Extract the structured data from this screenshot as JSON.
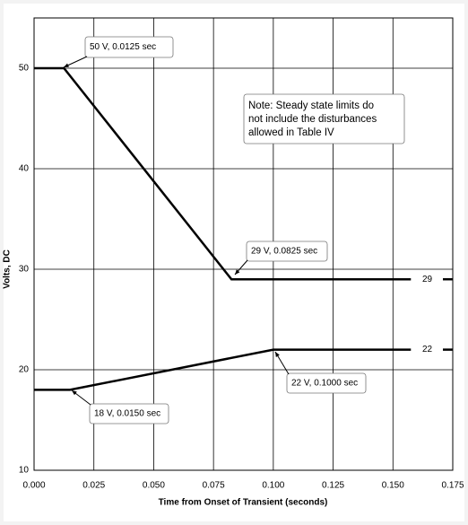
{
  "chart_data": {
    "type": "line",
    "x_label": "Time from Onset of Transient (seconds)",
    "y_label": "Volts, DC",
    "series": [
      {
        "color": "#000000",
        "x": [
          0,
          0.0125,
          0.0825,
          0.1575
        ],
        "values": [
          50,
          50,
          29,
          29
        ]
      },
      {
        "color": "#000000",
        "x": [
          0,
          0.015,
          0.1,
          0.1575
        ],
        "values": [
          18,
          18,
          22,
          22
        ]
      }
    ],
    "xlim": [
      0,
      0.175
    ],
    "xticks": [
      {
        "value": 0,
        "label": "0.000"
      },
      {
        "value": 0.025,
        "label": "0.025"
      },
      {
        "value": 0.05,
        "label": "0.050"
      },
      {
        "value": 0.075,
        "label": "0.075"
      },
      {
        "value": 0.1,
        "label": "0.100"
      },
      {
        "value": 0.125,
        "label": "0.125"
      },
      {
        "value": 0.15,
        "label": "0.150"
      },
      {
        "value": 0.175,
        "label": "0.175"
      }
    ],
    "ylim": [
      10,
      55
    ],
    "yticks": [
      10,
      20,
      30,
      40,
      50
    ],
    "grid": true,
    "annotations": [
      "50 V, 0.0125 sec",
      "29 V, 0.0825 sec",
      "18 V, 0.0150 sec",
      "22 V, 0.1000 sec"
    ],
    "note": [
      "Note: Steady state limits do",
      "not include the disturbances",
      "allowed in Table IV"
    ]
  }
}
